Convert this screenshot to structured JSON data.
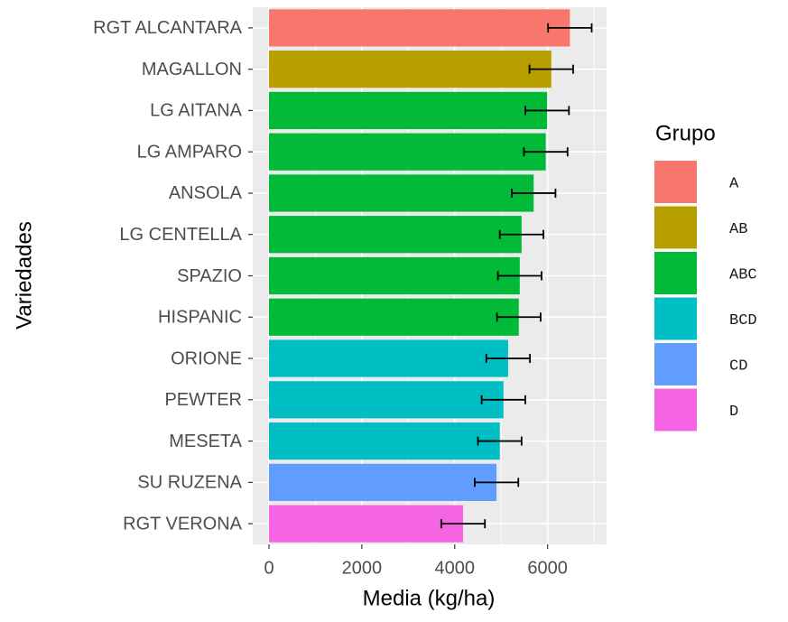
{
  "chart_data": {
    "type": "bar",
    "orientation": "horizontal",
    "x_label": "Media (kg/ha)",
    "y_label": "Variedades",
    "legend_title": "Grupo",
    "categories": [
      "RGT ALCANTARA",
      "MAGALLON",
      "LG AITANA",
      "LG AMPARO",
      "ANSOLA",
      "LG CENTELLA",
      "SPAZIO",
      "HISPANIC",
      "ORIONE",
      "PEWTER",
      "MESETA",
      "SU RUZENA",
      "RGT VERONA"
    ],
    "values": [
      6480,
      6080,
      5990,
      5960,
      5700,
      5440,
      5400,
      5380,
      5150,
      5050,
      4970,
      4900,
      4180
    ],
    "errors": [
      470,
      470,
      470,
      470,
      470,
      470,
      470,
      470,
      470,
      470,
      470,
      470,
      470
    ],
    "groups": [
      "A",
      "AB",
      "ABC",
      "ABC",
      "ABC",
      "ABC",
      "ABC",
      "ABC",
      "BCD",
      "BCD",
      "BCD",
      "CD",
      "D"
    ],
    "legend": [
      {
        "name": "A",
        "color": "#F8766D"
      },
      {
        "name": "AB",
        "color": "#B79F00"
      },
      {
        "name": "ABC",
        "color": "#00BA38"
      },
      {
        "name": "BCD",
        "color": "#00BFC4"
      },
      {
        "name": "CD",
        "color": "#619CFF"
      },
      {
        "name": "D",
        "color": "#F564E3"
      }
    ],
    "xlim": [
      -350,
      7270
    ],
    "xticks": [
      0,
      2000,
      4000,
      6000
    ],
    "grid": true
  }
}
